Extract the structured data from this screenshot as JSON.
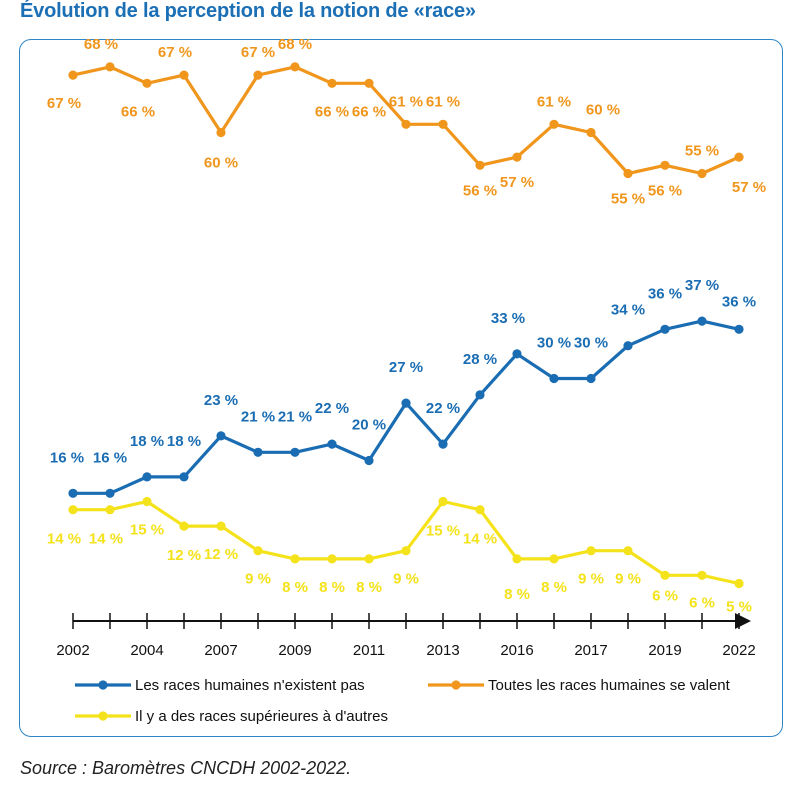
{
  "title": "Évolution de la perception de la notion de «race»",
  "source": "Source : Baromètres CNCDH 2002-2022.",
  "colors": {
    "frame": "#2e86c8",
    "title": "#1b6fb5"
  },
  "chart_data": {
    "type": "line",
    "title": "Évolution de la perception de la notion de «race»",
    "x_tick_labels": [
      "2002",
      "2004",
      "2007",
      "2009",
      "2011",
      "2013",
      "2016",
      "2017",
      "2019",
      "2022"
    ],
    "unit": "%",
    "legend_position": "bottom",
    "series": [
      {
        "name": "Toutes les races humaines se valent",
        "color": "#f0961d",
        "values": [
          67,
          68,
          66,
          67,
          60,
          67,
          68,
          66,
          66,
          61,
          61,
          56,
          57,
          61,
          60,
          55,
          56,
          55,
          57
        ],
        "labels": [
          "67 %",
          "68 %",
          "66 %",
          "67 %",
          "60 %",
          "67 %",
          "68 %",
          "66 %",
          "66 %",
          "61 %",
          "61 %",
          "56 %",
          "57 %",
          "61 %",
          "60 %",
          "55 %",
          "56 %",
          "55 %",
          "57 %"
        ]
      },
      {
        "name": "Les races humaines n'existent pas",
        "color": "#1a6db3",
        "values": [
          16,
          16,
          18,
          18,
          23,
          21,
          21,
          22,
          20,
          27,
          22,
          28,
          33,
          30,
          30,
          34,
          36,
          37,
          36
        ],
        "labels": [
          "16 %",
          "16 %",
          "18 %",
          "18 %",
          "23 %",
          "21 %",
          "21 %",
          "22 %",
          "20 %",
          "27 %",
          "22 %",
          "28 %",
          "33 %",
          "30 %",
          "30 %",
          "34 %",
          "36 %",
          "37 %",
          "36 %"
        ]
      },
      {
        "name": "Il y a des races supérieures à d'autres",
        "color": "#f4e21b",
        "values": [
          14,
          14,
          15,
          12,
          12,
          9,
          8,
          8,
          8,
          9,
          15,
          14,
          8,
          8,
          9,
          9,
          6,
          6,
          5
        ],
        "labels": [
          "14 %",
          "14 %",
          "15 %",
          "12 %",
          "12 %",
          "9 %",
          "8 %",
          "8 %",
          "8 %",
          "9 %",
          "15 %",
          "14 %",
          "8 %",
          "8 %",
          "9 %",
          "9 %",
          "6 %",
          "6 %",
          "5 %"
        ]
      }
    ]
  }
}
